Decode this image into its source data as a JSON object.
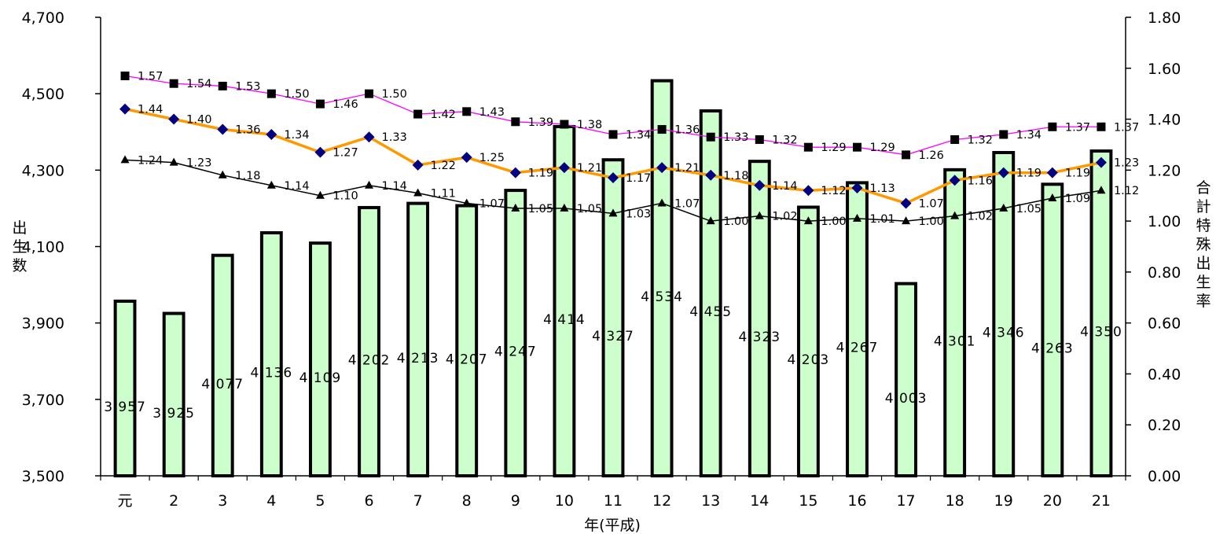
{
  "chart_data": {
    "type": "bar",
    "xlabel": "年(平成)",
    "ylabel": "出生数",
    "y2label": "合計特殊出生率",
    "categories": [
      "元",
      "2",
      "3",
      "4",
      "5",
      "6",
      "7",
      "8",
      "9",
      "10",
      "11",
      "12",
      "13",
      "14",
      "15",
      "16",
      "17",
      "18",
      "19",
      "20",
      "21"
    ],
    "ylim": [
      3500,
      4700
    ],
    "yticks": [
      "3,500",
      "3,700",
      "3,900",
      "4,100",
      "4,300",
      "4,500",
      "4,700"
    ],
    "y2lim": [
      0,
      1.8
    ],
    "y2ticks": [
      "0.00",
      "0.20",
      "0.40",
      "0.60",
      "0.80",
      "1.00",
      "1.20",
      "1.40",
      "1.60",
      "1.80"
    ],
    "bars": {
      "values": [
        3957,
        3925,
        4077,
        4136,
        4109,
        4202,
        4213,
        4207,
        4247,
        4414,
        4327,
        4534,
        4455,
        4323,
        4203,
        4267,
        4003,
        4301,
        4346,
        4263,
        4350
      ],
      "labels": [
        "3,957",
        "3,925",
        "4,077",
        "4,136",
        "4,109",
        "4,202",
        "4,213",
        "4,207",
        "4,247",
        "4,414",
        "4,327",
        "4,534",
        "4,455",
        "4,323",
        "4,203",
        "4,267",
        "4,003",
        "4,301",
        "4,346",
        "4,263",
        "4,350"
      ],
      "color": "#ccffcc"
    },
    "lines": [
      {
        "values": [
          1.57,
          1.54,
          1.53,
          1.5,
          1.46,
          1.5,
          1.42,
          1.43,
          1.39,
          1.38,
          1.34,
          1.36,
          1.33,
          1.32,
          1.29,
          1.29,
          1.26,
          1.32,
          1.34,
          1.37,
          1.37
        ],
        "labels": [
          "1.57",
          "1.54",
          "1.53",
          "1.50",
          "1.46",
          "1.50",
          "1.42",
          "1.43",
          "1.39",
          "1.38",
          "1.34",
          "1.36",
          "1.33",
          "1.32",
          "1.29",
          "1.29",
          "1.26",
          "1.32",
          "1.34",
          "1.37",
          "1.37"
        ],
        "color": "#ff00ff",
        "marker": "square"
      },
      {
        "values": [
          1.44,
          1.4,
          1.36,
          1.34,
          1.27,
          1.33,
          1.22,
          1.25,
          1.19,
          1.21,
          1.17,
          1.21,
          1.18,
          1.14,
          1.12,
          1.13,
          1.07,
          1.16,
          1.19,
          1.19,
          1.23
        ],
        "labels": [
          "1.44",
          "1.40",
          "1.36",
          "1.34",
          "1.27",
          "1.33",
          "1.22",
          "1.25",
          "1.19",
          "1.21",
          "1.17",
          "1.21",
          "1.18",
          "1.14",
          "1.12",
          "1.13",
          "1.07",
          "1.16",
          "1.19",
          "1.19",
          "1.23"
        ],
        "color": "#ff9900",
        "marker": "diamond"
      },
      {
        "values": [
          1.24,
          1.23,
          1.18,
          1.14,
          1.1,
          1.14,
          1.11,
          1.07,
          1.05,
          1.05,
          1.03,
          1.07,
          1.0,
          1.02,
          1.0,
          1.01,
          1.0,
          1.02,
          1.05,
          1.09,
          1.12
        ],
        "labels": [
          "1.24",
          "1.23",
          "1.18",
          "1.14",
          "1.10",
          "1.14",
          "1.11",
          "1.07",
          "1.05",
          "1.05",
          "1.03",
          "1.07",
          "1.00",
          "1.02",
          "1.00",
          "1.01",
          "1.00",
          "1.02",
          "1.05",
          "1.09",
          "1.12"
        ],
        "color": "#000000",
        "marker": "triangle"
      }
    ]
  }
}
